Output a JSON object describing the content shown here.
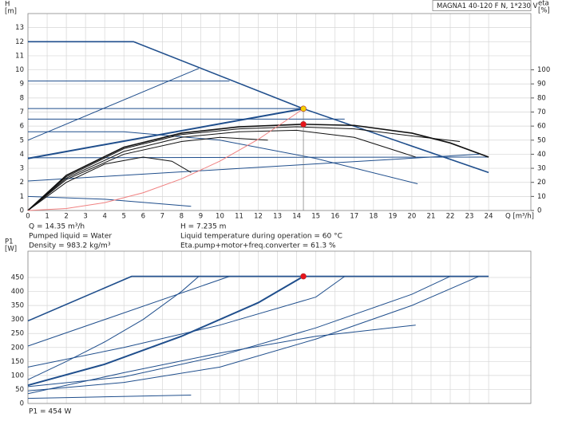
{
  "chart_data": [
    {
      "type": "line",
      "model": "MAGNA1 40-120 F N, 1*230 V",
      "ylabel": "H",
      "yunit": "[m]",
      "y2label": "eta",
      "y2unit": "[%]",
      "xlabel": "Q [m³/h]",
      "info": [
        "Q = 14.35 m³/h",
        "Pumped liquid = Water",
        "Density = 983.2 kg/m³",
        "H = 7.235 m",
        "Liquid temperature during operation = 60 °C",
        "Eta.pump+motor+freq.converter = 61.3 %"
      ],
      "xlim": [
        0,
        26.2
      ],
      "xticks": [
        0,
        1,
        2,
        3,
        4,
        5,
        6,
        7,
        8,
        9,
        10,
        11,
        12,
        13,
        14,
        15,
        16,
        17,
        18,
        19,
        20,
        21,
        22,
        23,
        24
      ],
      "ylim": [
        0,
        14
      ],
      "yticks": [
        0,
        1,
        2,
        3,
        4,
        5,
        6,
        7,
        8,
        9,
        10,
        11,
        12,
        13
      ],
      "y2lim": [
        0,
        140
      ],
      "y2ticks": [
        0,
        10,
        20,
        30,
        40,
        50,
        60,
        70,
        80,
        90,
        100
      ],
      "grid": true,
      "show_xtick_labels": true,
      "series": [
        {
          "color": "#1f4e8c",
          "width": 1.6,
          "x": [
            0,
            5.5,
            14.35,
            24
          ],
          "values": [
            12,
            12,
            7.235,
            2.7
          ]
        },
        {
          "color": "#1f4e8c",
          "width": 1,
          "x": [
            0,
            10.5
          ],
          "values": [
            9.2,
            9.2
          ]
        },
        {
          "color": "#1f4e8c",
          "width": 1,
          "x": [
            0,
            8.9
          ],
          "values": [
            5,
            10.1
          ]
        },
        {
          "color": "#1f4e8c",
          "width": 1,
          "x": [
            0,
            14.35
          ],
          "values": [
            7.25,
            7.25
          ]
        },
        {
          "color": "#1f4e8c",
          "width": 1,
          "x": [
            0,
            16.5
          ],
          "values": [
            6.5,
            6.5
          ]
        },
        {
          "color": "#1f4e8c",
          "width": 2,
          "x": [
            0,
            14.35
          ],
          "values": [
            3.7,
            7.235
          ]
        },
        {
          "color": "#1f4e8c",
          "width": 1,
          "x": [
            0,
            24
          ],
          "values": [
            3.75,
            3.8
          ]
        },
        {
          "color": "#1f4e8c",
          "width": 1,
          "x": [
            0,
            23.5
          ],
          "values": [
            2.1,
            4.0
          ]
        },
        {
          "color": "#1f4e8c",
          "width": 1,
          "x": [
            0,
            5,
            10,
            15,
            20.3
          ],
          "values": [
            5.6,
            5.6,
            5.0,
            3.7,
            1.9
          ]
        },
        {
          "color": "#1f4e8c",
          "width": 1,
          "x": [
            0,
            4,
            8.5
          ],
          "values": [
            1.0,
            0.8,
            0.3
          ]
        },
        {
          "color": "#111111",
          "width": 1.6,
          "axis": "y2",
          "x": [
            0,
            2,
            5,
            8,
            11,
            14.35,
            17,
            20,
            22,
            24
          ],
          "values": [
            0,
            25,
            45,
            55,
            59.5,
            61.3,
            60.5,
            55,
            48,
            38
          ]
        },
        {
          "color": "#111111",
          "width": 1,
          "axis": "y2",
          "x": [
            0,
            2,
            5,
            8,
            11,
            14,
            17,
            20,
            22.5
          ],
          "values": [
            0,
            24,
            44,
            54,
            58,
            59.5,
            58,
            53,
            49
          ]
        },
        {
          "color": "#111111",
          "width": 1,
          "axis": "y2",
          "x": [
            0,
            2,
            5,
            8,
            11,
            14,
            17,
            20.2
          ],
          "values": [
            0,
            23,
            42,
            52,
            56,
            57,
            52,
            38
          ]
        },
        {
          "color": "#111111",
          "width": 1,
          "axis": "y2",
          "x": [
            0,
            2,
            5,
            8,
            10,
            12.5
          ],
          "values": [
            0,
            22,
            40,
            49,
            52,
            50
          ]
        },
        {
          "color": "#111111",
          "width": 1,
          "axis": "y2",
          "x": [
            0,
            2,
            4,
            6,
            7.5,
            8.5
          ],
          "values": [
            0,
            20,
            33,
            38,
            35,
            27
          ]
        },
        {
          "color": "#f08080",
          "width": 1,
          "x": [
            0,
            2,
            4,
            6,
            8,
            10,
            12,
            14.35
          ],
          "values": [
            0,
            0.14,
            0.56,
            1.26,
            2.25,
            3.51,
            5.06,
            7.235
          ]
        }
      ],
      "points": [
        {
          "x": 14.35,
          "value": 7.235,
          "color": "#f5d000"
        },
        {
          "x": 14.35,
          "value": 61.3,
          "color": "#e8141b",
          "axis": "y2"
        }
      ]
    },
    {
      "type": "line",
      "ylabel": "P1",
      "yunit": "[W]",
      "note": "P1 = 454 W",
      "xlim": [
        0,
        26.2
      ],
      "xticks": [
        0,
        1,
        2,
        3,
        4,
        5,
        6,
        7,
        8,
        9,
        10,
        11,
        12,
        13,
        14,
        15,
        16,
        17,
        18,
        19,
        20,
        21,
        22,
        23,
        24
      ],
      "ylim": [
        0,
        544
      ],
      "yticks": [
        0,
        50,
        100,
        150,
        200,
        250,
        300,
        350,
        400,
        450
      ],
      "grid": true,
      "show_xtick_labels": false,
      "series": [
        {
          "color": "#1f4e8c",
          "width": 1.6,
          "x": [
            0,
            5.4,
            24
          ],
          "values": [
            295,
            454,
            454
          ]
        },
        {
          "color": "#1f4e8c",
          "width": 1,
          "x": [
            0,
            10.5
          ],
          "values": [
            205,
            454
          ]
        },
        {
          "color": "#1f4e8c",
          "width": 1,
          "x": [
            0,
            2,
            4,
            6,
            8,
            8.9
          ],
          "values": [
            85,
            150,
            220,
            300,
            400,
            454
          ]
        },
        {
          "color": "#1f4e8c",
          "width": 2,
          "x": [
            0,
            4,
            8,
            12,
            14.35
          ],
          "values": [
            65,
            140,
            240,
            360,
            454
          ]
        },
        {
          "color": "#1f4e8c",
          "width": 1,
          "x": [
            0,
            5,
            10,
            15,
            16.5
          ],
          "values": [
            130,
            200,
            280,
            380,
            454
          ]
        },
        {
          "color": "#1f4e8c",
          "width": 1,
          "x": [
            0,
            5,
            10,
            15,
            20,
            22
          ],
          "values": [
            60,
            95,
            170,
            270,
            390,
            454
          ]
        },
        {
          "color": "#1f4e8c",
          "width": 1,
          "x": [
            0,
            5,
            10,
            15,
            20,
            23.5
          ],
          "values": [
            45,
            75,
            130,
            230,
            350,
            454
          ]
        },
        {
          "color": "#1f4e8c",
          "width": 1,
          "x": [
            0,
            5,
            10,
            15,
            20.2
          ],
          "values": [
            35,
            110,
            180,
            240,
            280
          ]
        },
        {
          "color": "#1f4e8c",
          "width": 1,
          "x": [
            0,
            8.5
          ],
          "values": [
            18,
            30
          ]
        }
      ],
      "points": [
        {
          "x": 14.35,
          "value": 454,
          "color": "#e8141b"
        }
      ]
    }
  ]
}
